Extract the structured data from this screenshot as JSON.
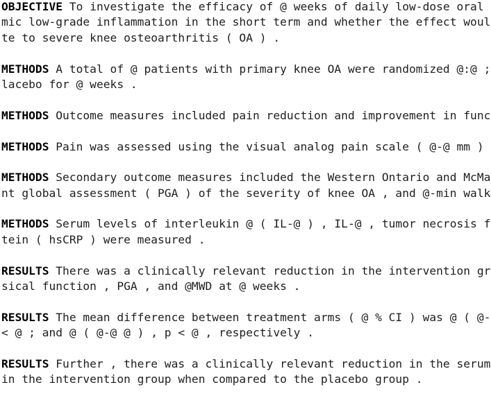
{
  "paragraphs": [
    {
      "label": "OBJECTIVE",
      "lines": [
        " To investigate the efficacy of @ weeks of daily low-dose oral",
        "mic low-grade inflammation in the short term and whether the effect woul",
        "te to severe knee osteoarthritis ( OA ) ."
      ]
    },
    {
      "label": "METHODS",
      "lines": [
        " A total of @ patients with primary knee OA were randomized @:@ ;",
        "lacebo for @ weeks ."
      ]
    },
    {
      "label": "METHODS",
      "lines": [
        " Outcome measures included pain reduction and improvement in func"
      ]
    },
    {
      "label": "METHODS",
      "lines": [
        " Pain was assessed using the visual analog pain scale ( @-@ mm )"
      ]
    },
    {
      "label": "METHODS",
      "lines": [
        " Secondary outcome measures included the Western Ontario and McMa",
        "nt global assessment ( PGA ) of the severity of knee OA , and @-min walk"
      ]
    },
    {
      "label": "METHODS",
      "lines": [
        " Serum levels of interleukin @ ( IL-@ ) , IL-@ , tumor necrosis f",
        "tein ( hsCRP ) were measured ."
      ]
    },
    {
      "label": "RESULTS",
      "lines": [
        " There was a clinically relevant reduction in the intervention gr",
        "sical function , PGA , and @MWD at @ weeks ."
      ]
    },
    {
      "label": "RESULTS",
      "lines": [
        " The mean difference between treatment arms ( @ % CI ) was @ ( @-",
        "< @ ; and @ ( @-@ @ ) , p < @ , respectively ."
      ]
    },
    {
      "label": "RESULTS",
      "lines": [
        " Further , there was a clinically relevant reduction in the serum",
        "in the intervention group when compared to the placebo group ."
      ]
    }
  ]
}
